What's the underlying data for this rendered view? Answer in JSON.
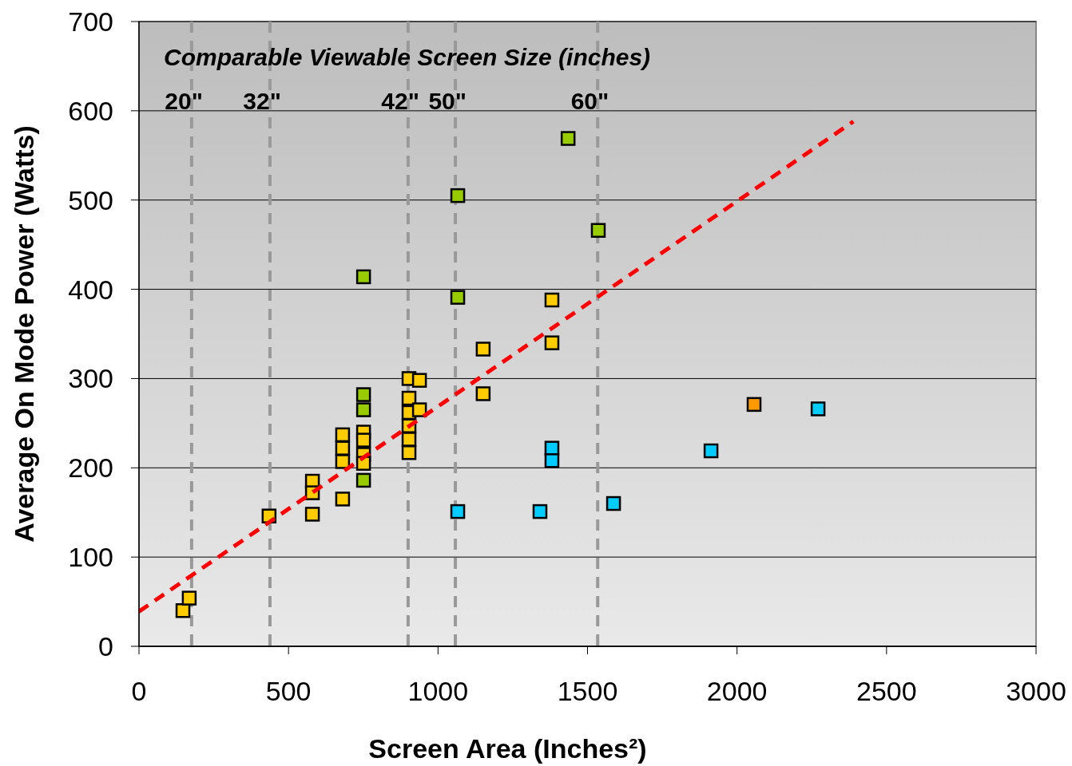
{
  "chart_data": {
    "type": "scatter",
    "xlabel": "Screen Area (Inches²)",
    "ylabel": "Average On Mode Power (Watts)",
    "xlim": [
      0,
      3000
    ],
    "ylim": [
      0,
      700
    ],
    "xticks": [
      0,
      500,
      1000,
      1500,
      2000,
      2500,
      3000
    ],
    "yticks": [
      0,
      100,
      200,
      300,
      400,
      500,
      600,
      700
    ],
    "grid": "y",
    "marker": "square",
    "annotations": [
      "Comparable Viewable Screen Size (inches)",
      {
        "text": "20\"",
        "x": 176,
        "y": 602
      },
      {
        "text": "32\"",
        "x": 438,
        "y": 602
      },
      {
        "text": "42\"",
        "x": 900,
        "y": 602
      },
      {
        "text": "50\"",
        "x": 1058,
        "y": 602
      },
      {
        "text": "60\"",
        "x": 1534,
        "y": 602
      }
    ],
    "ref_lines": [
      {
        "axis": "x",
        "value": 176,
        "color": "#999999",
        "line_style": "dashed"
      },
      {
        "axis": "x",
        "value": 438,
        "color": "#999999",
        "line_style": "dashed"
      },
      {
        "axis": "x",
        "value": 900,
        "color": "#999999",
        "line_style": "dashed"
      },
      {
        "axis": "x",
        "value": 1058,
        "color": "#999999",
        "line_style": "dashed"
      },
      {
        "axis": "x",
        "value": 1534,
        "color": "#999999",
        "line_style": "dashed"
      }
    ],
    "series": [
      {
        "color": "#ffcc00",
        "x": [
          147,
          168,
          435,
          580,
          580,
          580,
          681,
          681,
          681,
          681,
          751,
          751,
          751,
          751,
          903,
          903,
          903,
          903,
          903,
          903,
          938,
          938,
          1151,
          1151,
          1381,
          1381
        ],
        "values": [
          40,
          54,
          146,
          185,
          172,
          148,
          165,
          237,
          222,
          207,
          240,
          231,
          215,
          205,
          300,
          278,
          262,
          247,
          232,
          217,
          298,
          265,
          333,
          283,
          388,
          340
        ]
      },
      {
        "color": "#99cc00",
        "x": [
          751,
          751,
          751,
          751,
          1066,
          1066,
          1435,
          1536
        ],
        "values": [
          282,
          265,
          186,
          414,
          505,
          391,
          569,
          466
        ]
      },
      {
        "color": "#00ccff",
        "x": [
          1066,
          1341,
          1381,
          1381,
          1587,
          1913,
          2271
        ],
        "values": [
          151,
          151,
          222,
          208,
          160,
          219,
          266
        ]
      },
      {
        "color": "#ff9900",
        "x": [
          2057
        ],
        "values": [
          271
        ]
      },
      {
        "type": "line",
        "color": "#ff0000",
        "line_style": "dashed",
        "marker": "none",
        "x": [
          0,
          2389
        ],
        "values": [
          39,
          588
        ]
      }
    ]
  }
}
